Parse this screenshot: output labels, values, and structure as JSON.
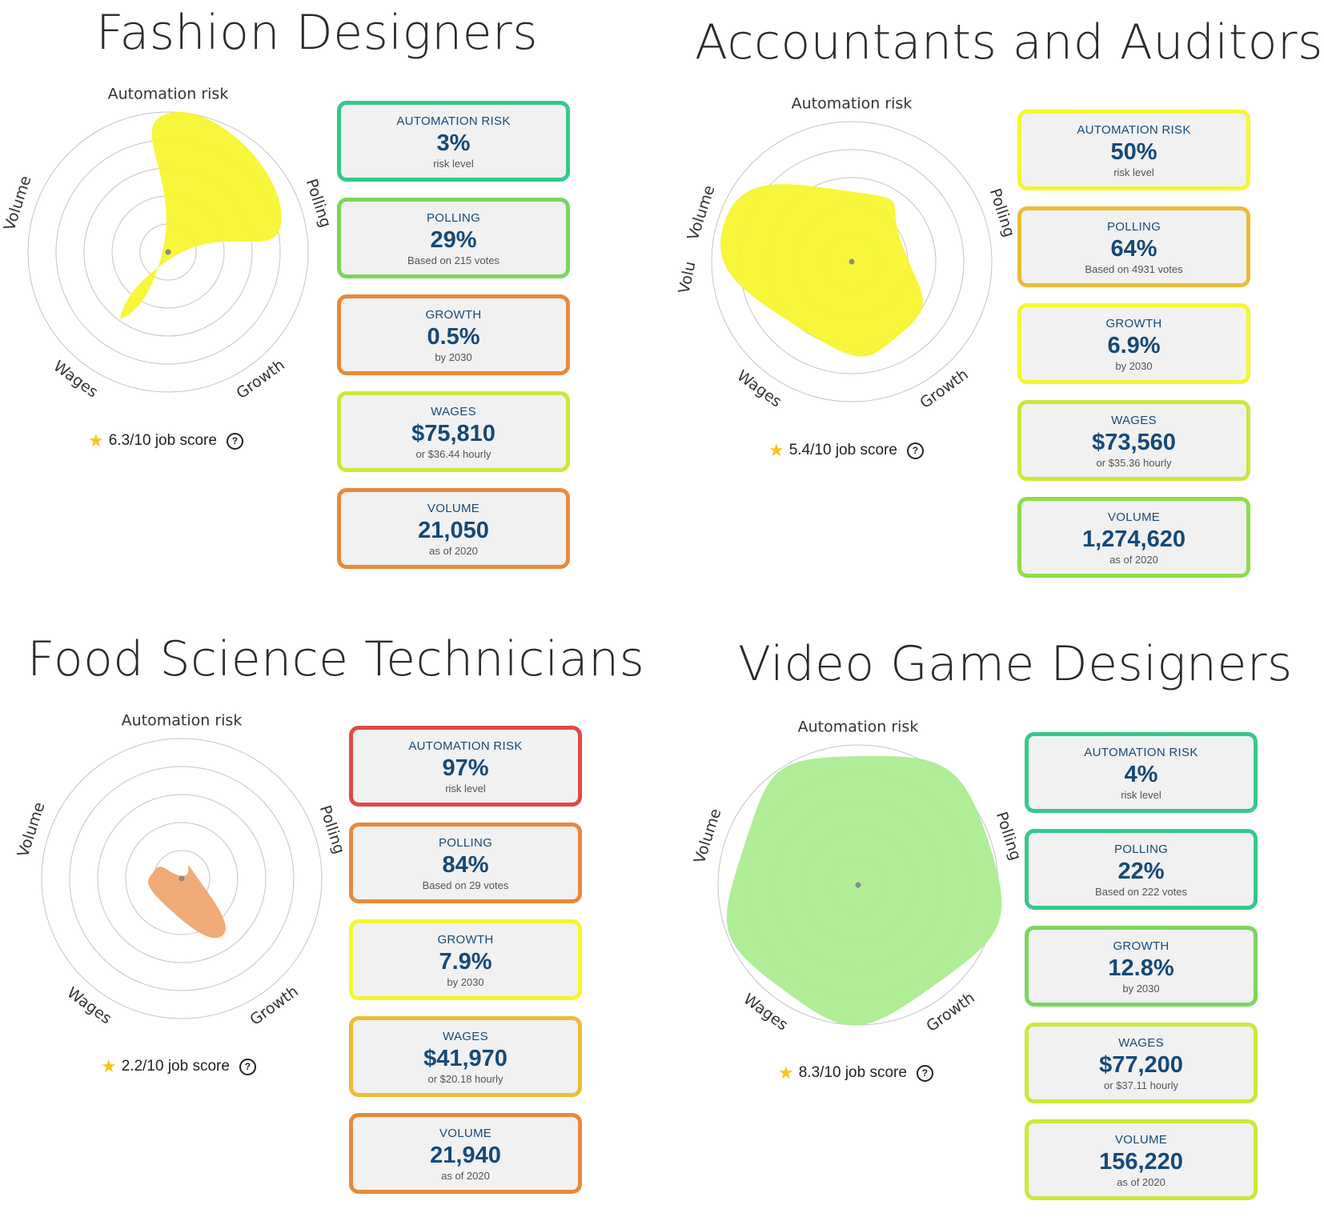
{
  "colors": {
    "title": "#2b2b2b",
    "card_label": "#164b78",
    "card_value": "#134a78",
    "card_bg": "#f1f1f1",
    "grid": "#c4c4c4",
    "star": "#f5c518"
  },
  "panels": [
    {
      "title": "Fashion Designers",
      "score_text": "6.3/10 job score",
      "radar": {
        "axes": [
          "Automation risk",
          "Polling",
          "Growth",
          "Wages",
          "Volume"
        ],
        "fill": "#f6f52a",
        "values": [
          0.99,
          0.85,
          0.05,
          0.6,
          0.04
        ]
      },
      "cards": [
        {
          "label": "AUTOMATION RISK",
          "value": "3%",
          "sub": "risk level",
          "border": "#35c88a"
        },
        {
          "label": "POLLING",
          "value": "29%",
          "sub": "Based on 215 votes",
          "border": "#7ad65c"
        },
        {
          "label": "GROWTH",
          "value": "0.5%",
          "sub": "by 2030",
          "border": "#e8893c"
        },
        {
          "label": "WAGES",
          "value": "$75,810",
          "sub": "or $36.44 hourly",
          "border": "#c9e93a"
        },
        {
          "label": "VOLUME",
          "value": "21,050",
          "sub": "as of 2020",
          "border": "#e8893c"
        }
      ]
    },
    {
      "title": "Accountants and Auditors",
      "score_text": "5.4/10 job score",
      "radar": {
        "axes": [
          "Automation risk",
          "Polling",
          "Growth",
          "Wages",
          "Volume"
        ],
        "extra_label": "Volu",
        "fill": "#f6f52a",
        "values": [
          0.5,
          0.38,
          0.62,
          0.6,
          0.95
        ]
      },
      "cards": [
        {
          "label": "AUTOMATION RISK",
          "value": "50%",
          "sub": "risk level",
          "border": "#f6f530"
        },
        {
          "label": "POLLING",
          "value": "64%",
          "sub": "Based on 4931 votes",
          "border": "#edbb35"
        },
        {
          "label": "GROWTH",
          "value": "6.9%",
          "sub": "by 2030",
          "border": "#f6f530"
        },
        {
          "label": "WAGES",
          "value": "$73,560",
          "sub": "or $35.36 hourly",
          "border": "#c9e93a"
        },
        {
          "label": "VOLUME",
          "value": "1,274,620",
          "sub": "as of 2020",
          "border": "#8fdc4a"
        }
      ]
    },
    {
      "title": "Food Science Technicians",
      "score_text": "2.2/10 job score",
      "radar": {
        "axes": [
          "Automation risk",
          "Polling",
          "Growth",
          "Wages",
          "Volume"
        ],
        "fill": "#f0a46a",
        "values": [
          0.02,
          0.1,
          0.5,
          0.22,
          0.2
        ]
      },
      "cards": [
        {
          "label": "AUTOMATION RISK",
          "value": "97%",
          "sub": "risk level",
          "border": "#df4a46"
        },
        {
          "label": "POLLING",
          "value": "84%",
          "sub": "Based on 29 votes",
          "border": "#e8893c"
        },
        {
          "label": "GROWTH",
          "value": "7.9%",
          "sub": "by 2030",
          "border": "#f6f530"
        },
        {
          "label": "WAGES",
          "value": "$41,970",
          "sub": "or $20.18 hourly",
          "border": "#efbb35"
        },
        {
          "label": "VOLUME",
          "value": "21,940",
          "sub": "as of 2020",
          "border": "#e8893c"
        }
      ]
    },
    {
      "title": "Video Game Designers",
      "score_text": "8.3/10 job score",
      "radar": {
        "axes": [
          "Automation risk",
          "Polling",
          "Growth",
          "Wages",
          "Volume"
        ],
        "fill": "#a8ec8e",
        "values": [
          0.92,
          0.98,
          0.9,
          0.92,
          0.86
        ]
      },
      "cards": [
        {
          "label": "AUTOMATION RISK",
          "value": "4%",
          "sub": "risk level",
          "border": "#35c88a"
        },
        {
          "label": "POLLING",
          "value": "22%",
          "sub": "Based on 222 votes",
          "border": "#35c88a"
        },
        {
          "label": "GROWTH",
          "value": "12.8%",
          "sub": "by 2030",
          "border": "#7ad65c"
        },
        {
          "label": "WAGES",
          "value": "$77,200",
          "sub": "or $37.11 hourly",
          "border": "#c9e93a"
        },
        {
          "label": "VOLUME",
          "value": "156,220",
          "sub": "as of 2020",
          "border": "#c9e93a"
        }
      ]
    }
  ]
}
